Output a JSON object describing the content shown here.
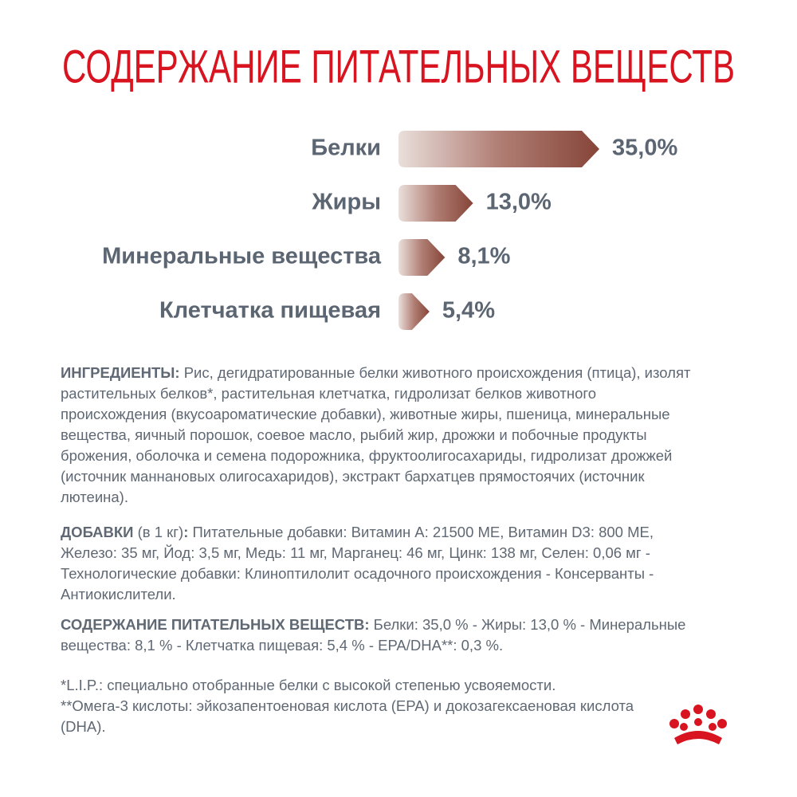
{
  "chart_data": {
    "type": "bar",
    "orientation": "horizontal",
    "title": "СОДЕРЖАНИЕ ПИТАТЕЛЬНЫХ ВЕЩЕСТВ",
    "categories": [
      "Белки",
      "Жиры",
      "Минеральные вещества",
      "Клетчатка пищевая"
    ],
    "values": [
      35,
      13,
      8.1,
      5.4
    ],
    "value_labels": [
      "35,0%",
      "13,0%",
      "8,1%",
      "5,4%"
    ],
    "color": "#8a4a3f"
  },
  "ingredients": {
    "label": "ИНГРЕДИЕНТЫ:",
    "text": "Рис, дегидратированные белки животного происхождения (птица), изолят растительных белков*, растительная клетчатка, гидролизат белков животного происхождения (вкусоароматические добавки), животные жиры, пшеница, минеральные вещества, яичный порошок, соевое масло, рыбий жир, дрожжи и побочные продукты брожения, оболочка и семена подорожника, фруктоолигосахариды, гидролизат дрожжей (источник маннановых олигосахаридов), экстракт бархатцев прямостоячих (источник лютеина)."
  },
  "additives": {
    "label": "ДОБАВКИ",
    "note": "(в 1 кг)",
    "colon": ":",
    "text": "Питательные добавки: Витамин А: 21500 МЕ, Витамин D3: 800 МЕ, Железо: 35 мг, Йод: 3,5 мг, Медь: 11 мг, Марганец: 46 мг, Цинк: 138 мг, Селен: 0,06 мг - Технологические добавки: Клиноптилолит осадочного происхождения - Консерванты - Антиокислители."
  },
  "nutrients": {
    "label": "СОДЕРЖАНИЕ ПИТАТЕЛЬНЫХ ВЕЩЕСТВ:",
    "text": "Белки: 35,0 % - Жиры: 13,0 % - Минеральные вещества: 8,1 % - Клетчатка пищевая: 5,4 % - EPA/DHA**: 0,3 %."
  },
  "footnotes": [
    "*L.I.P.: специально отобранные белки с высокой степенью усвояемости.",
    "**Омега-3 кислоты: эйкозапентоеновая кислота (EPA) и докозагексаеновая кислота (DHA)."
  ]
}
